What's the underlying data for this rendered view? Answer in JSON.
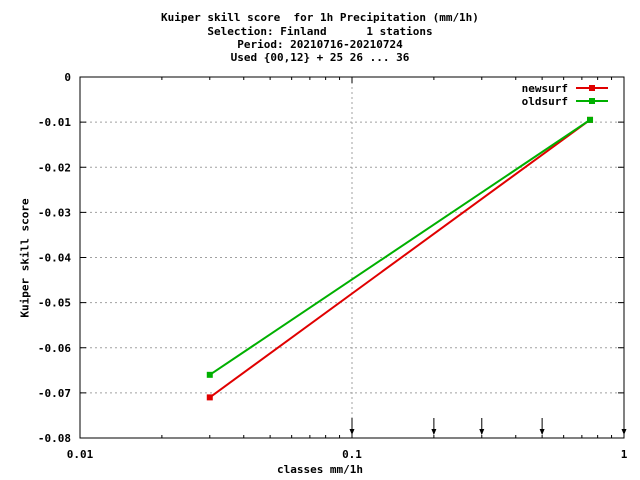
{
  "title_lines": [
    "Kuiper skill score  for 1h Precipitation (mm/1h)",
    "Selection: Finland      1 stations",
    "Period: 20210716-20210724",
    "Used {00,12} + 25 26 ... 36"
  ],
  "chart_data": {
    "type": "line",
    "xlabel": "classes mm/1h",
    "ylabel": "Kuiper skill score",
    "x_scale": "log",
    "xlim": [
      0.01,
      1
    ],
    "ylim": [
      -0.08,
      0
    ],
    "x_ticks": [
      0.01,
      0.1,
      1
    ],
    "x_tick_labels": [
      "0.01",
      "0.1",
      "1"
    ],
    "y_ticks": [
      0,
      -0.01,
      -0.02,
      -0.03,
      -0.04,
      -0.05,
      -0.06,
      -0.07,
      -0.08
    ],
    "y_tick_labels": [
      "0",
      "-0.01",
      "-0.02",
      "-0.03",
      "-0.04",
      "-0.05",
      "-0.06",
      "-0.07",
      "-0.08"
    ],
    "grid": true,
    "legend_position": "top-right",
    "class_markers_x": [
      0.1,
      0.2,
      0.3,
      0.5,
      1.0
    ],
    "series": [
      {
        "name": "newsurf",
        "color": "#e00000",
        "x": [
          0.03,
          0.75
        ],
        "y": [
          -0.071,
          -0.0095
        ]
      },
      {
        "name": "oldsurf",
        "color": "#00b000",
        "x": [
          0.03,
          0.75
        ],
        "y": [
          -0.066,
          -0.0095
        ]
      }
    ]
  }
}
